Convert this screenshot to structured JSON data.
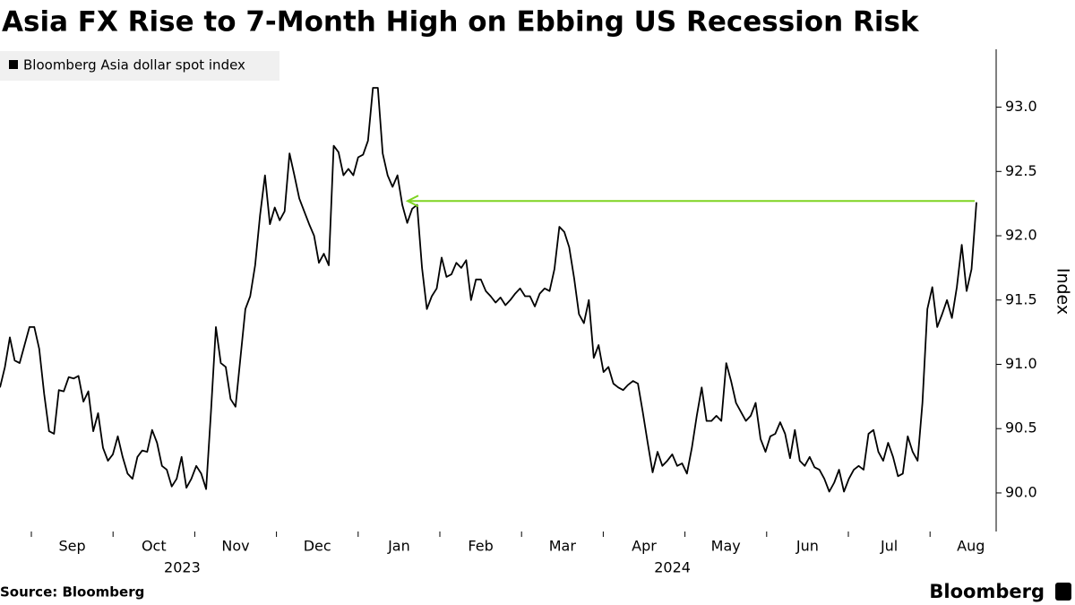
{
  "chart_data": {
    "type": "line",
    "title": "Asia FX Rise to 7-Month High on Ebbing US Recession Risk",
    "source": "Source: Bloomberg",
    "brand": "Bloomberg",
    "ylabel": "Index",
    "xgroups": [
      {
        "label": "2023",
        "categories": [
          "Sep",
          "Oct",
          "Nov",
          "Dec"
        ]
      },
      {
        "label": "2024",
        "categories": [
          "Jan",
          "Feb",
          "Mar",
          "Apr",
          "May",
          "Jun",
          "Jul",
          "Aug"
        ]
      }
    ],
    "ylim": [
      89.7,
      93.45
    ],
    "yticks": [
      {
        "value": 90,
        "label": "90.0"
      },
      {
        "value": 90.5,
        "label": "90.5"
      },
      {
        "value": 91,
        "label": "91.0"
      },
      {
        "value": 91.5,
        "label": "91.5"
      },
      {
        "value": 92,
        "label": "92.0"
      },
      {
        "value": 92.5,
        "label": "92.5"
      },
      {
        "value": 93,
        "label": "93.0"
      }
    ],
    "legend": "top-left",
    "annotation": {
      "value": 92.27,
      "color": "#7ed321"
    },
    "series": [
      {
        "name": "Bloomberg Asia dollar spot index",
        "color": "#000000",
        "values": [
          90.82,
          90.98,
          91.21,
          91.03,
          91.01,
          91.15,
          91.29,
          91.29,
          91.12,
          90.77,
          90.48,
          90.46,
          90.8,
          90.79,
          90.9,
          90.89,
          90.91,
          90.71,
          90.79,
          90.48,
          90.62,
          90.35,
          90.25,
          90.3,
          90.44,
          90.28,
          90.15,
          90.11,
          90.28,
          90.33,
          90.32,
          90.49,
          90.39,
          90.21,
          90.18,
          90.05,
          90.11,
          90.28,
          90.04,
          90.11,
          90.21,
          90.15,
          90.03,
          90.63,
          91.29,
          91.01,
          90.98,
          90.73,
          90.67,
          91.05,
          91.43,
          91.53,
          91.77,
          92.16,
          92.47,
          92.09,
          92.22,
          92.12,
          92.19,
          92.64,
          92.47,
          92.29,
          92.19,
          92.09,
          92.0,
          91.79,
          91.86,
          91.77,
          92.7,
          92.65,
          92.47,
          92.52,
          92.47,
          92.61,
          92.63,
          92.74,
          93.15,
          93.15,
          92.64,
          92.47,
          92.38,
          92.47,
          92.24,
          92.1,
          92.21,
          92.24,
          91.75,
          91.43,
          91.53,
          91.59,
          91.83,
          91.68,
          91.7,
          91.79,
          91.75,
          91.81,
          91.5,
          91.66,
          91.66,
          91.57,
          91.53,
          91.48,
          91.52,
          91.46,
          91.5,
          91.55,
          91.59,
          91.53,
          91.53,
          91.45,
          91.55,
          91.59,
          91.57,
          91.74,
          92.07,
          92.03,
          91.91,
          91.67,
          91.39,
          91.32,
          91.5,
          91.05,
          91.15,
          90.94,
          90.98,
          90.85,
          90.82,
          90.8,
          90.84,
          90.87,
          90.85,
          90.63,
          90.39,
          90.16,
          90.32,
          90.21,
          90.25,
          90.3,
          90.21,
          90.23,
          90.15,
          90.35,
          90.6,
          90.82,
          90.56,
          90.56,
          90.6,
          90.56,
          91.01,
          90.87,
          90.7,
          90.63,
          90.56,
          90.6,
          90.7,
          90.42,
          90.32,
          90.44,
          90.46,
          90.55,
          90.46,
          90.27,
          90.49,
          90.25,
          90.21,
          90.28,
          90.2,
          90.18,
          90.11,
          90.01,
          90.08,
          90.18,
          90.01,
          90.11,
          90.18,
          90.21,
          90.18,
          90.46,
          90.49,
          90.32,
          90.25,
          90.39,
          90.28,
          90.13,
          90.15,
          90.44,
          90.32,
          90.25,
          90.7,
          91.43,
          91.6,
          91.29,
          91.39,
          91.5,
          91.36,
          91.6,
          91.93,
          91.57,
          91.74,
          92.26
        ]
      }
    ]
  }
}
